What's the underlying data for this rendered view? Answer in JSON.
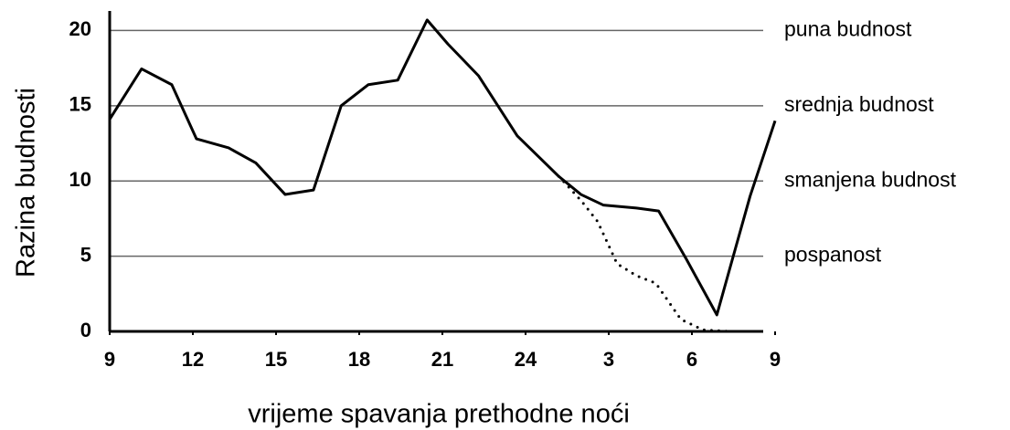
{
  "chart_data": {
    "type": "line",
    "xlabel": "vrijeme spavanja prethodne noći",
    "ylabel": "Razina budnosti",
    "xlim": [
      9,
      33
    ],
    "xticks": [
      9,
      12,
      15,
      18,
      21,
      24,
      {
        "value": 27,
        "label": "3"
      },
      {
        "value": 30,
        "label": "6"
      },
      {
        "value": 33,
        "label": "9"
      }
    ],
    "ylim": [
      0,
      21.3
    ],
    "yticks": [
      0,
      5,
      10,
      15,
      20
    ],
    "grid": true,
    "annotations": [
      {
        "y": 20,
        "text": "puna budnost"
      },
      {
        "y": 15,
        "text": "srednja budnost"
      },
      {
        "y": 10,
        "text": "smanjena budnost"
      },
      {
        "y": 5,
        "text": "pospanost"
      }
    ],
    "series": [
      {
        "color": "#000000",
        "style": "solid",
        "x": [
          9,
          10.15,
          11.24,
          12.13,
          13.29,
          14.27,
          15.33,
          16.35,
          17.35,
          18.33,
          19.39,
          20.45,
          21.2,
          22.3,
          23.7,
          24.7,
          25.2,
          26.0,
          26.8,
          28.0,
          28.8,
          29.8,
          30.9,
          31.4,
          32.1,
          33
        ],
        "values": [
          14.1,
          17.45,
          16.4,
          12.8,
          12.2,
          11.2,
          9.1,
          9.4,
          15.0,
          16.4,
          16.7,
          20.7,
          19.1,
          17.0,
          13.0,
          11.2,
          10.3,
          9.1,
          8.4,
          8.2,
          8.0,
          4.8,
          1.1,
          4.4,
          9.0,
          14.0
        ]
      },
      {
        "color": "#000000",
        "style": "dotted",
        "x": [
          25.2,
          26.0,
          26.6,
          27.3,
          28.0,
          28.7,
          29.6,
          30.4,
          31.4
        ],
        "values": [
          10.3,
          8.7,
          7.3,
          4.5,
          3.7,
          3.2,
          0.8,
          0.1,
          0
        ]
      }
    ]
  }
}
